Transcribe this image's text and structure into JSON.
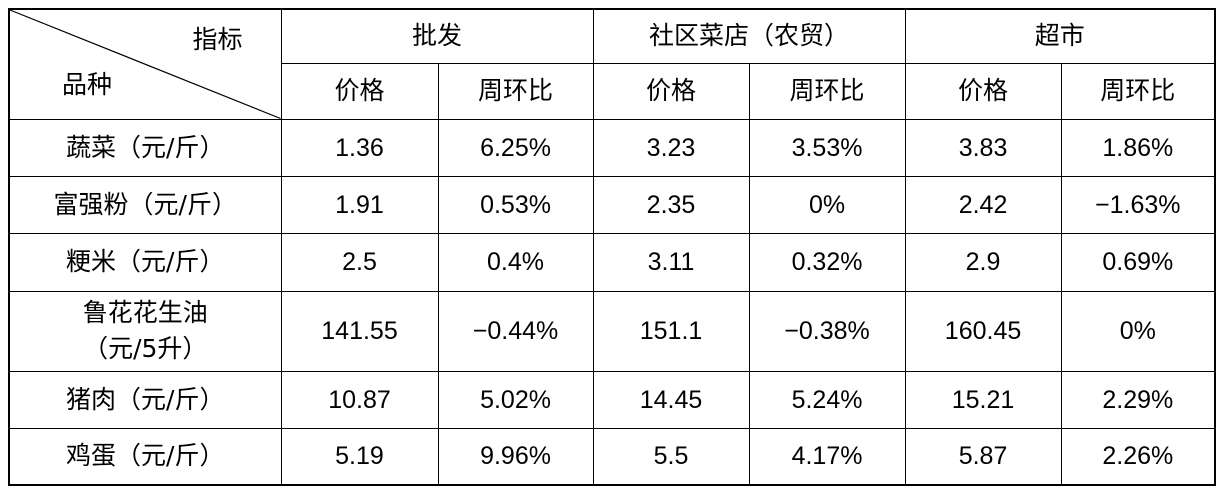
{
  "table": {
    "corner": {
      "indicator_label": "指标",
      "variety_label": "品种"
    },
    "groups": [
      "批发",
      "社区菜店（农贸）",
      "超市"
    ],
    "subheaders": [
      "价格",
      "周环比",
      "价格",
      "周环比",
      "价格",
      "周环比"
    ],
    "rows": [
      {
        "name": "蔬菜",
        "unit": "（元/斤）",
        "cells": [
          "1.36",
          "6.25%",
          "3.23",
          "3.53%",
          "3.83",
          "1.86%"
        ]
      },
      {
        "name": "富强粉",
        "unit": "（元/斤）",
        "cells": [
          "1.91",
          "0.53%",
          "2.35",
          "0%",
          "2.42",
          "−1.63%"
        ]
      },
      {
        "name": "粳米",
        "unit": "（元/斤）",
        "cells": [
          "2.5",
          "0.4%",
          "3.11",
          "0.32%",
          "2.9",
          "0.69%"
        ]
      },
      {
        "name": "鲁花花生油",
        "unit": "（元/5升）",
        "cells": [
          "141.55",
          "−0.44%",
          "151.1",
          "−0.38%",
          "160.45",
          "0%"
        ]
      },
      {
        "name": "猪肉",
        "unit": "（元/斤）",
        "cells": [
          "10.87",
          "5.02%",
          "14.45",
          "5.24%",
          "15.21",
          "2.29%"
        ]
      },
      {
        "name": "鸡蛋",
        "unit": "（元/斤）",
        "cells": [
          "5.19",
          "9.96%",
          "5.5",
          "4.17%",
          "5.87",
          "2.26%"
        ]
      }
    ]
  }
}
